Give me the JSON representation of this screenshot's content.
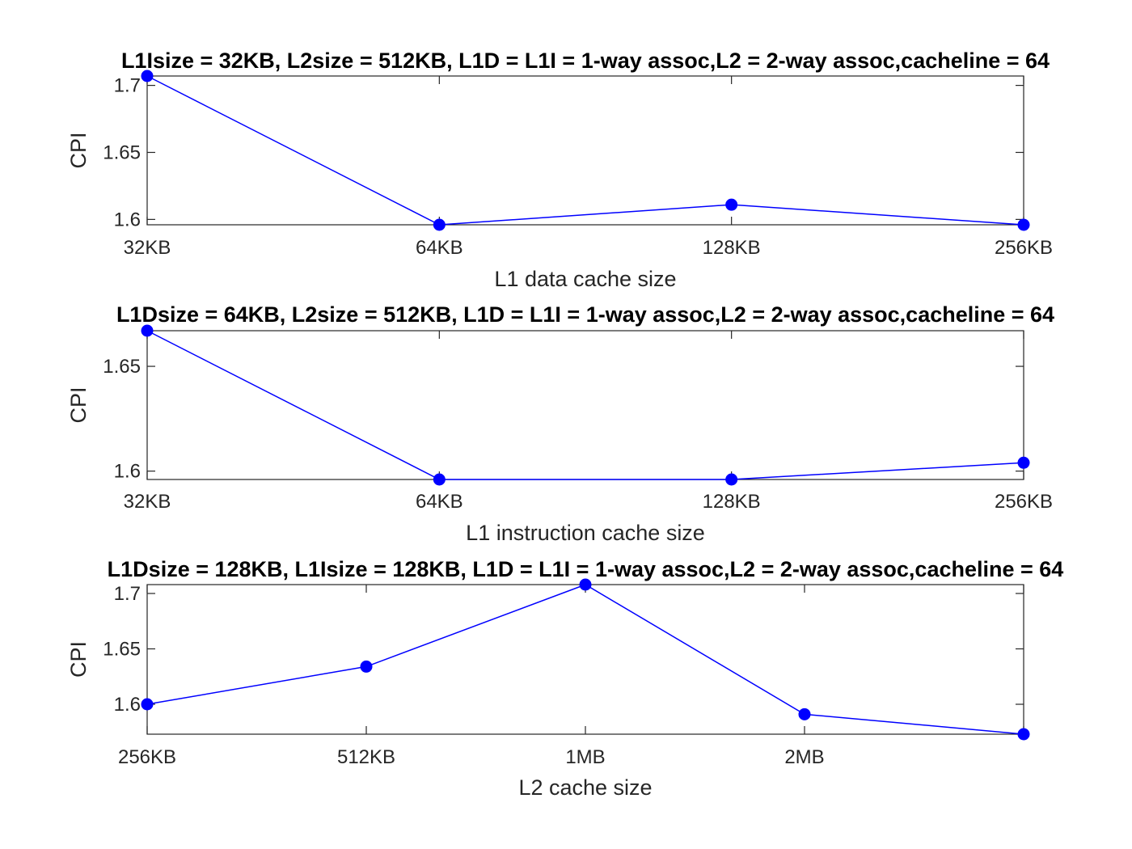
{
  "chart_data": [
    {
      "type": "line",
      "title": "L1Isize = 32KB, L2size = 512KB, L1D = L1I = 1-way assoc,L2 = 2-way assoc,cacheline = 64",
      "xlabel": "L1 data cache size",
      "ylabel": "CPI",
      "categories": [
        "32KB",
        "64KB",
        "128KB",
        "256KB"
      ],
      "x": [
        1,
        2,
        3,
        4
      ],
      "values": [
        1.707,
        1.596,
        1.611,
        1.596
      ],
      "xlim": [
        1,
        4
      ],
      "ylim": [
        1.596,
        1.707
      ],
      "yticks": [
        1.6,
        1.65,
        1.7
      ],
      "ytick_labels": [
        "1.6",
        "1.65",
        "1.7"
      ],
      "grid": false,
      "color": "#0000ff"
    },
    {
      "type": "line",
      "title": "L1Dsize = 64KB, L2size = 512KB, L1D = L1I = 1-way assoc,L2 = 2-way assoc,cacheline = 64",
      "xlabel": "L1 instruction cache size",
      "ylabel": "CPI",
      "categories": [
        "32KB",
        "64KB",
        "128KB",
        "256KB"
      ],
      "x": [
        1,
        2,
        3,
        4
      ],
      "values": [
        1.667,
        1.596,
        1.596,
        1.604
      ],
      "xlim": [
        1,
        4
      ],
      "ylim": [
        1.596,
        1.667
      ],
      "yticks": [
        1.6,
        1.65
      ],
      "ytick_labels": [
        "1.6",
        "1.65"
      ],
      "grid": false,
      "color": "#0000ff"
    },
    {
      "type": "line",
      "title": "L1Dsize = 128KB, L1Isize = 128KB, L1D = L1I = 1-way assoc,L2 = 2-way assoc,cacheline = 64",
      "xlabel": "L2 cache size",
      "ylabel": "CPI",
      "categories": [
        "256KB",
        "512KB",
        "1MB",
        "2MB",
        ""
      ],
      "x": [
        1,
        2,
        3,
        4,
        5
      ],
      "values": [
        1.6,
        1.634,
        1.708,
        1.591,
        1.573
      ],
      "xlim": [
        1,
        5
      ],
      "ylim": [
        1.573,
        1.708
      ],
      "yticks": [
        1.6,
        1.65,
        1.7
      ],
      "ytick_labels": [
        "1.6",
        "1.65",
        "1.7"
      ],
      "grid": false,
      "color": "#0000ff"
    }
  ]
}
